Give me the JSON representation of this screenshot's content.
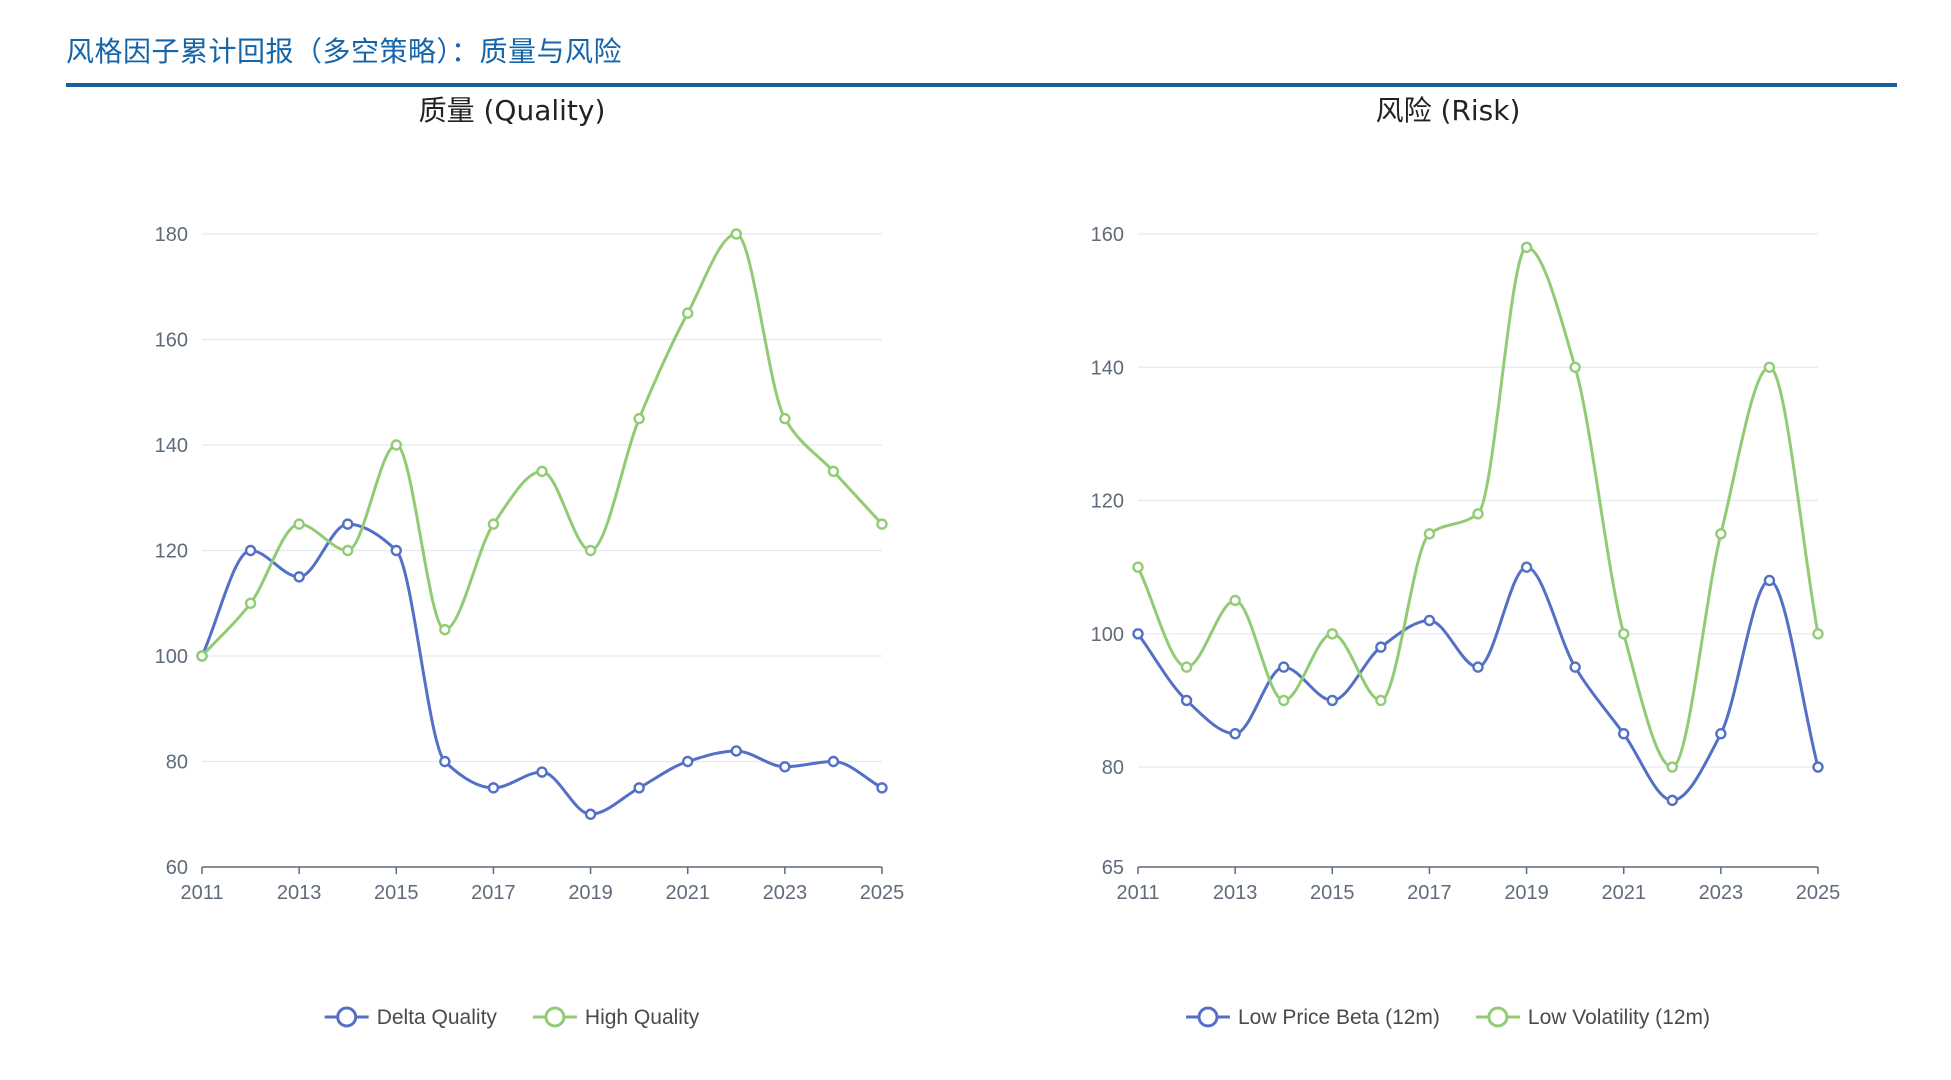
{
  "page": {
    "title": "风格因子累计回报（多空策略）：质量与风险"
  },
  "chart_data": [
    {
      "type": "line",
      "title": "质量 (Quality)",
      "x": [
        2011,
        2012,
        2013,
        2014,
        2015,
        2016,
        2017,
        2018,
        2019,
        2020,
        2021,
        2022,
        2023,
        2024,
        2025
      ],
      "x_tick_labels": [
        "2011",
        "2013",
        "2015",
        "2017",
        "2019",
        "2021",
        "2023",
        "2025"
      ],
      "ylim": [
        60,
        180
      ],
      "y_ticks": [
        60,
        80,
        100,
        120,
        140,
        160,
        180
      ],
      "grid": true,
      "legend": "bottom-center",
      "series": [
        {
          "name": "Delta Quality",
          "color": "#5470c6",
          "values": [
            100,
            120,
            115,
            125,
            120,
            80,
            75,
            78,
            70,
            75,
            80,
            82,
            79,
            80,
            75
          ]
        },
        {
          "name": "High Quality",
          "color": "#91cc75",
          "values": [
            100,
            110,
            125,
            120,
            140,
            105,
            125,
            135,
            120,
            145,
            165,
            180,
            145,
            135,
            125
          ]
        }
      ]
    },
    {
      "type": "line",
      "title": "风险 (Risk)",
      "x": [
        2011,
        2012,
        2013,
        2014,
        2015,
        2016,
        2017,
        2018,
        2019,
        2020,
        2021,
        2022,
        2023,
        2024,
        2025
      ],
      "x_tick_labels": [
        "2011",
        "2013",
        "2015",
        "2017",
        "2019",
        "2021",
        "2023",
        "2025"
      ],
      "ylim": [
        65,
        160
      ],
      "y_ticks": [
        65,
        80,
        100,
        120,
        140,
        160
      ],
      "grid": true,
      "legend": "bottom-center",
      "series": [
        {
          "name": "Low Price Beta (12m)",
          "color": "#5470c6",
          "values": [
            100,
            90,
            85,
            95,
            90,
            98,
            102,
            95,
            110,
            95,
            85,
            75,
            85,
            108,
            80
          ]
        },
        {
          "name": "Low Volatility (12m)",
          "color": "#91cc75",
          "values": [
            110,
            95,
            105,
            90,
            100,
            90,
            115,
            118,
            158,
            140,
            100,
            80,
            115,
            140,
            100
          ]
        }
      ]
    }
  ]
}
